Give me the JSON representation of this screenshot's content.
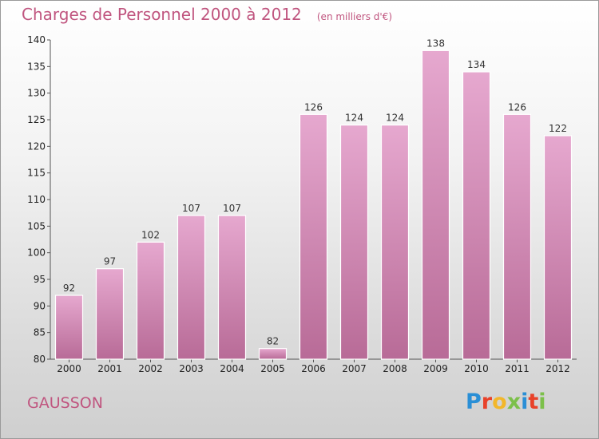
{
  "header": {
    "title": "Charges de Personnel 2000 à 2012",
    "subtitle": "(en milliers d'€)"
  },
  "footer": {
    "commune": "GAUSSON",
    "logo_text": "Proxiti"
  },
  "colors": {
    "title": "#c0557f",
    "bar_light": "#e6a8cf",
    "bar_dark": "#b86b97",
    "logo_letters": [
      "#2a8fd6",
      "#e8422a",
      "#f2b72b",
      "#7cc04a",
      "#2a8fd6",
      "#e8422a",
      "#7cc04a"
    ]
  },
  "chart_data": {
    "type": "bar",
    "categories": [
      "2000",
      "2001",
      "2002",
      "2003",
      "2004",
      "2005",
      "2006",
      "2007",
      "2008",
      "2009",
      "2010",
      "2011",
      "2012"
    ],
    "values": [
      92,
      97,
      102,
      107,
      107,
      82,
      126,
      124,
      124,
      138,
      134,
      126,
      122
    ],
    "ylim": [
      80,
      140
    ],
    "yticks": [
      80,
      85,
      90,
      95,
      100,
      105,
      110,
      115,
      120,
      125,
      130,
      135,
      140
    ],
    "grid": false,
    "data_labels": true
  }
}
